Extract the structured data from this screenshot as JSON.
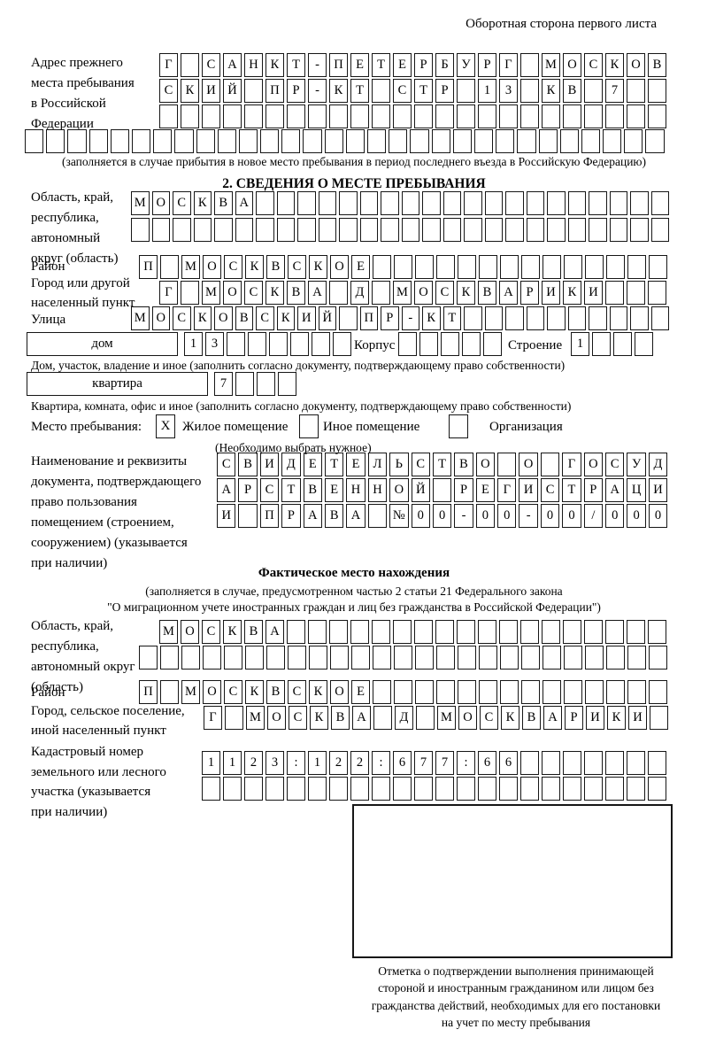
{
  "colors": {
    "ink": "#161616",
    "background": "#ffffff"
  },
  "header": {
    "note": "Оборотная сторона первого листа"
  },
  "prev_address": {
    "label_lines": [
      "Адрес прежнего",
      "места пребывания",
      "в Российской",
      "Федерации"
    ],
    "row1": [
      "Г",
      "",
      "С",
      "А",
      "Н",
      "К",
      "Т",
      "-",
      "П",
      "Е",
      "Т",
      "Е",
      "Р",
      "Б",
      "У",
      "Р",
      "Г",
      "",
      "М",
      "О",
      "С",
      "К",
      "О",
      "В"
    ],
    "row2": [
      "С",
      "К",
      "И",
      "Й",
      "",
      "П",
      "Р",
      "-",
      "К",
      "Т",
      "",
      "С",
      "Т",
      "Р",
      "",
      "1",
      "3",
      "",
      "К",
      "В",
      "",
      "7",
      "",
      ""
    ],
    "row3": [
      "",
      "",
      "",
      "",
      "",
      "",
      "",
      "",
      "",
      "",
      "",
      "",
      "",
      "",
      "",
      "",
      "",
      "",
      "",
      "",
      "",
      "",
      "",
      ""
    ],
    "row4": [
      "",
      "",
      "",
      "",
      "",
      "",
      "",
      "",
      "",
      "",
      "",
      "",
      "",
      "",
      "",
      "",
      "",
      "",
      "",
      "",
      "",
      "",
      "",
      "",
      "",
      "",
      "",
      "",
      "",
      ""
    ],
    "caption": "(заполняется в случае прибытия в новое место пребывания в период последнего въезда в Российскую Федерацию)"
  },
  "section2": {
    "title": "2. СВЕДЕНИЯ О МЕСТЕ ПРЕБЫВАНИЯ",
    "oblast": {
      "label_lines": [
        "Область, край,",
        "республика,",
        "автономный",
        "округ (область)"
      ],
      "row1": [
        "М",
        "О",
        "С",
        "К",
        "В",
        "А",
        "",
        "",
        "",
        "",
        "",
        "",
        "",
        "",
        "",
        "",
        "",
        "",
        "",
        "",
        "",
        "",
        "",
        "",
        "",
        ""
      ],
      "row2": [
        "",
        "",
        "",
        "",
        "",
        "",
        "",
        "",
        "",
        "",
        "",
        "",
        "",
        "",
        "",
        "",
        "",
        "",
        "",
        "",
        "",
        "",
        "",
        "",
        "",
        ""
      ]
    },
    "rayon": {
      "label": "Район",
      "row": [
        "П",
        "",
        "М",
        "О",
        "С",
        "К",
        "В",
        "С",
        "К",
        "О",
        "Е",
        "",
        "",
        "",
        "",
        "",
        "",
        "",
        "",
        "",
        "",
        "",
        "",
        "",
        ""
      ]
    },
    "gorod": {
      "label_lines": [
        "Город или другой",
        "населенный пункт"
      ],
      "row": [
        "Г",
        "",
        "М",
        "О",
        "С",
        "К",
        "В",
        "А",
        "",
        "Д",
        "",
        "М",
        "О",
        "С",
        "К",
        "В",
        "А",
        "Р",
        "И",
        "К",
        "И",
        "",
        "",
        ""
      ]
    },
    "ulitsa": {
      "label": "Улица",
      "row": [
        "М",
        "О",
        "С",
        "К",
        "О",
        "В",
        "С",
        "К",
        "И",
        "Й",
        "",
        "П",
        "Р",
        "-",
        "К",
        "Т",
        "",
        "",
        "",
        "",
        "",
        "",
        "",
        "",
        "",
        ""
      ]
    },
    "dom": {
      "box_label": "дом",
      "cells": [
        "1",
        "3",
        "",
        "",
        "",
        "",
        "",
        ""
      ],
      "korpus_label": "Корпус",
      "korpus_cells": [
        "",
        "",
        "",
        "",
        ""
      ],
      "stroenie_label": "Строение",
      "stroenie_cells": [
        "1",
        "",
        "",
        ""
      ],
      "caption": "Дом, участок, владение и иное (заполнить согласно документу, подтверждающему право собственности)"
    },
    "kvartira": {
      "box_label": "квартира",
      "cells": [
        "7",
        "",
        "",
        ""
      ],
      "caption": "Квартира, комната, офис и иное (заполнить согласно документу, подтверждающему право собственности)"
    },
    "mesto": {
      "label": "Место пребывания:",
      "options": [
        {
          "checked": "X",
          "label": "Жилое помещение"
        },
        {
          "checked": "",
          "label": "Иное помещение"
        },
        {
          "checked": "",
          "label": "Организация"
        }
      ],
      "hint": "(Необходимо выбрать нужное)"
    },
    "doc": {
      "label_lines": [
        "Наименование и реквизиты",
        "документа, подтверждающего",
        "право пользования",
        "помещением (строением,",
        "сооружением) (указывается",
        "при наличии)"
      ],
      "row1": [
        "С",
        "В",
        "И",
        "Д",
        "Е",
        "Т",
        "Е",
        "Л",
        "Ь",
        "С",
        "Т",
        "В",
        "О",
        "",
        "О",
        "",
        "Г",
        "О",
        "С",
        "У",
        "Д"
      ],
      "row2": [
        "А",
        "Р",
        "С",
        "Т",
        "В",
        "Е",
        "Н",
        "Н",
        "О",
        "Й",
        "",
        "Р",
        "Е",
        "Г",
        "И",
        "С",
        "Т",
        "Р",
        "А",
        "Ц",
        "И"
      ],
      "row3": [
        "И",
        "",
        "П",
        "Р",
        "А",
        "В",
        "А",
        "",
        "№",
        "0",
        "0",
        "-",
        "0",
        "0",
        "-",
        "0",
        "0",
        "/",
        "0",
        "0",
        "0"
      ]
    }
  },
  "fact": {
    "title": "Фактическое место нахождения",
    "caption_line1": "(заполняется в случае, предусмотренном частью 2 статьи 21 Федерального закона",
    "caption_line2": "\"О миграционном учете иностранных граждан и лиц без гражданства в Российской Федерации\")",
    "oblast": {
      "label_lines": [
        "Область, край,",
        "республика,",
        "автономный округ",
        "(область)"
      ],
      "row1": [
        "М",
        "О",
        "С",
        "К",
        "В",
        "А",
        "",
        "",
        "",
        "",
        "",
        "",
        "",
        "",
        "",
        "",
        "",
        "",
        "",
        "",
        "",
        "",
        "",
        ""
      ],
      "row2": [
        "",
        "",
        "",
        "",
        "",
        "",
        "",
        "",
        "",
        "",
        "",
        "",
        "",
        "",
        "",
        "",
        "",
        "",
        "",
        "",
        "",
        "",
        "",
        "",
        ""
      ]
    },
    "rayon": {
      "label": "Район",
      "row": [
        "П",
        "",
        "М",
        "О",
        "С",
        "К",
        "В",
        "С",
        "К",
        "О",
        "Е",
        "",
        "",
        "",
        "",
        "",
        "",
        "",
        "",
        "",
        "",
        "",
        "",
        "",
        ""
      ]
    },
    "gorod": {
      "label_lines": [
        "Город, сельское поселение,",
        "иной населенный пункт"
      ],
      "row": [
        "Г",
        "",
        "М",
        "О",
        "С",
        "К",
        "В",
        "А",
        "",
        "Д",
        "",
        "М",
        "О",
        "С",
        "К",
        "В",
        "А",
        "Р",
        "И",
        "К",
        "И",
        ""
      ]
    },
    "kadastr": {
      "label_lines": [
        "Кадастровый номер",
        "земельного или лесного",
        "участка (указывается",
        "при наличии)"
      ],
      "row1": [
        "1",
        "1",
        "2",
        "3",
        ":",
        "1",
        "2",
        "2",
        ":",
        "6",
        "7",
        "7",
        ":",
        "6",
        "6",
        "",
        "",
        "",
        "",
        "",
        "",
        ""
      ],
      "row2": [
        "",
        "",
        "",
        "",
        "",
        "",
        "",
        "",
        "",
        "",
        "",
        "",
        "",
        "",
        "",
        "",
        "",
        "",
        "",
        "",
        "",
        ""
      ]
    },
    "stamp_caption_lines": [
      "Отметка о подтверждении выполнения принимающей",
      "стороной и иностранным гражданином или лицом без",
      "гражданства действий, необходимых для его постановки",
      "на учет по месту пребывания"
    ]
  }
}
